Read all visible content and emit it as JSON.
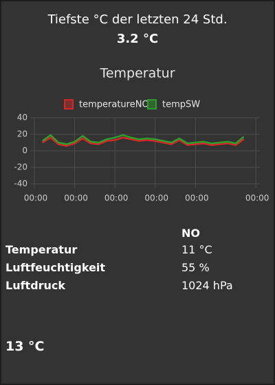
{
  "header": {
    "title": "Tiefste °C der letzten 24 Std.",
    "value": "3.2 °C"
  },
  "chart_data": {
    "type": "line",
    "title": "Temperatur",
    "x": [
      0.2,
      0.4,
      0.6,
      0.8,
      1.0,
      1.2,
      1.4,
      1.6,
      1.8,
      2.0,
      2.2,
      2.4,
      2.6,
      2.8,
      3.0,
      3.2,
      3.4,
      3.6,
      3.8,
      4.0,
      4.2,
      4.4,
      4.6,
      4.8,
      5.0,
      5.2
    ],
    "series": [
      {
        "name": "temperatureNO",
        "color": "#d62728",
        "values": [
          10,
          16,
          8,
          6,
          9,
          15,
          9,
          8,
          12,
          13,
          16,
          14,
          12,
          13,
          12,
          10,
          8,
          13,
          7,
          8,
          9,
          7,
          8,
          9,
          7,
          14
        ]
      },
      {
        "name": "tempSW",
        "color": "#2ca02c",
        "values": [
          12,
          19,
          10,
          8,
          11,
          18,
          11,
          10,
          14,
          16,
          19,
          16,
          14,
          15,
          14,
          12,
          10,
          15,
          9,
          10,
          11,
          9,
          10,
          11,
          9,
          17
        ]
      }
    ],
    "xlim": [
      0,
      5.6
    ],
    "xticks": [
      {
        "value": 0,
        "label": "00:00"
      },
      {
        "value": 1,
        "label": "00:00"
      },
      {
        "value": 2,
        "label": "00:00"
      },
      {
        "value": 3,
        "label": "00:00"
      },
      {
        "value": 4,
        "label": "00:00"
      },
      {
        "value": 5.5,
        "label": "00:00"
      }
    ],
    "ylim": [
      -40,
      40
    ],
    "yticks": [
      40,
      20,
      0,
      -20,
      -40
    ],
    "grid": true
  },
  "table": {
    "column": "NO",
    "rows": [
      [
        "Temperatur",
        "11 °C"
      ],
      [
        "Luftfeuchtigkeit",
        "55 %"
      ],
      [
        "Luftdruck",
        "1024 hPa"
      ]
    ]
  },
  "footer": {
    "value": "13 °C"
  }
}
